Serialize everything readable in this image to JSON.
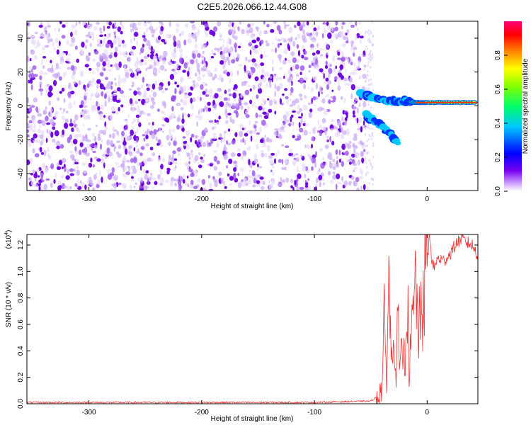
{
  "title": "C2E5.2026.066.12.44.G08",
  "chart_data": [
    {
      "type": "heatmap",
      "title": "C2E5.2026.066.12.44.G08",
      "xlabel": "Height of straight line (km)",
      "ylabel": "Frequency (Hz)",
      "xlim": [
        -355,
        45
      ],
      "ylim": [
        -50,
        50
      ],
      "xticks": [
        -300,
        -200,
        -100,
        0
      ],
      "yticks": [
        -40,
        -20,
        0,
        20,
        40
      ],
      "noise_region_x": [
        -355,
        -55
      ],
      "signal_trace": [
        {
          "x": -60,
          "y": 8
        },
        {
          "x": -50,
          "y": 5
        },
        {
          "x": -40,
          "y": 3
        },
        {
          "x": -30,
          "y": 3
        },
        {
          "x": -20,
          "y": 3
        },
        {
          "x": -10,
          "y": 2
        },
        {
          "x": 0,
          "y": 2
        },
        {
          "x": 20,
          "y": 2
        },
        {
          "x": 44,
          "y": 2
        }
      ],
      "branch_trace": [
        {
          "x": -55,
          "y": -5
        },
        {
          "x": -45,
          "y": -10
        },
        {
          "x": -35,
          "y": -15
        },
        {
          "x": -25,
          "y": -22
        }
      ],
      "colorbar": {
        "label": "Normalized spectral amplitude",
        "range": [
          0.0,
          1.0
        ],
        "ticks": [
          0.0,
          0.2,
          0.4,
          0.6,
          0.8
        ],
        "tick_labels": [
          "0.0",
          "0.2",
          "0.4",
          "0.6",
          "0.8"
        ],
        "colors": [
          "#ffffff",
          "#7700ee",
          "#0000ff",
          "#00c8ff",
          "#00ff00",
          "#ffff00",
          "#ff8800",
          "#ff0000",
          "#ff0077"
        ]
      }
    },
    {
      "type": "line",
      "xlabel": "Height of straight line (km)",
      "ylabel": "SNR (10 * v/v)",
      "scale_label_base": "(x10",
      "scale_label_exp": "4",
      "scale_label_end": ")",
      "xlim": [
        -355,
        45
      ],
      "ylim": [
        0,
        1.28
      ],
      "xticks": [
        -300,
        -200,
        -100,
        0
      ],
      "yticks": [
        0.0,
        0.2,
        0.4,
        0.6,
        0.8,
        1.0,
        1.2
      ],
      "ytick_labels": [
        "0.0",
        "0.2",
        "0.4",
        "0.6",
        "0.8",
        "1.0",
        "1.2"
      ],
      "color": "#ee3333",
      "series": [
        {
          "name": "SNR",
          "x": [
            -355,
            -300,
            -200,
            -100,
            -50,
            -45,
            -40,
            -38,
            -36,
            -34,
            -32,
            -30,
            -28,
            -26,
            -24,
            -22,
            -20,
            -18,
            -16,
            -14,
            -12,
            -10,
            -8,
            -6,
            -4,
            -2,
            0,
            2,
            5,
            10,
            15,
            20,
            25,
            30,
            35,
            40,
            45
          ],
          "y": [
            0.01,
            0.01,
            0.01,
            0.01,
            0.02,
            0.05,
            0.12,
            0.6,
            0.2,
            1.02,
            0.3,
            0.8,
            0.15,
            0.6,
            0.2,
            0.45,
            0.3,
            0.92,
            0.25,
            0.45,
            0.7,
            0.9,
            0.6,
            0.55,
            0.75,
            1.0,
            1.05,
            1.28,
            1.02,
            1.1,
            1.08,
            1.13,
            1.2,
            1.25,
            1.22,
            1.2,
            1.12
          ]
        }
      ]
    }
  ]
}
